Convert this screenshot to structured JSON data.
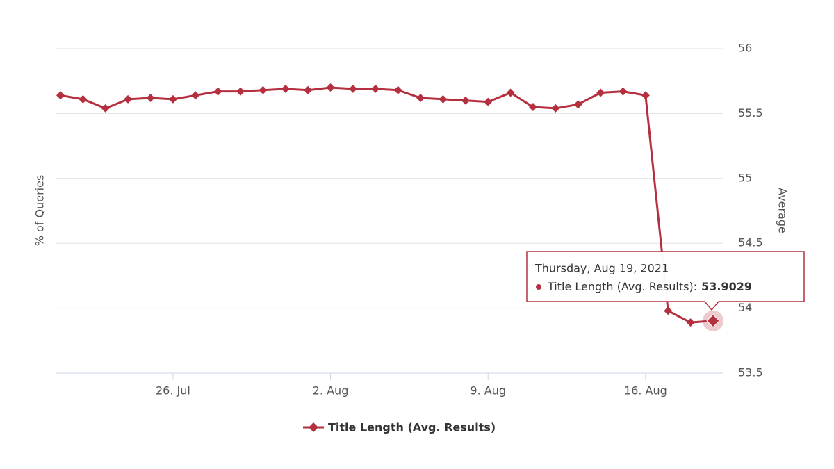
{
  "chart_data": {
    "type": "line",
    "y_title_left": "% of Queries",
    "y_title_right": "Average",
    "categories": [
      null,
      null,
      null,
      null,
      null,
      "26. Jul",
      null,
      null,
      null,
      null,
      null,
      null,
      "2. Aug",
      null,
      null,
      null,
      null,
      null,
      null,
      "9. Aug",
      null,
      null,
      null,
      null,
      null,
      null,
      "16. Aug",
      null,
      null,
      null
    ],
    "series": [
      {
        "name": "Title Length (Avg. Results)",
        "color": "#b5303e",
        "values": [
          55.64,
          55.61,
          55.54,
          55.61,
          55.62,
          55.61,
          55.64,
          55.67,
          55.67,
          55.68,
          55.69,
          55.68,
          55.7,
          55.69,
          55.69,
          55.68,
          55.62,
          55.61,
          55.6,
          55.59,
          55.66,
          55.55,
          55.54,
          55.57,
          55.66,
          55.67,
          55.64,
          53.98,
          53.89,
          53.9029
        ]
      }
    ],
    "ylim": [
      53.5,
      56
    ],
    "yticks": [
      53.5,
      54,
      54.5,
      55,
      55.5,
      56
    ],
    "grid": true,
    "legend": "bottom",
    "tooltip": {
      "date": "Thursday, Aug 19, 2021",
      "label": "Title Length (Avg. Results):",
      "point": 29
    }
  }
}
